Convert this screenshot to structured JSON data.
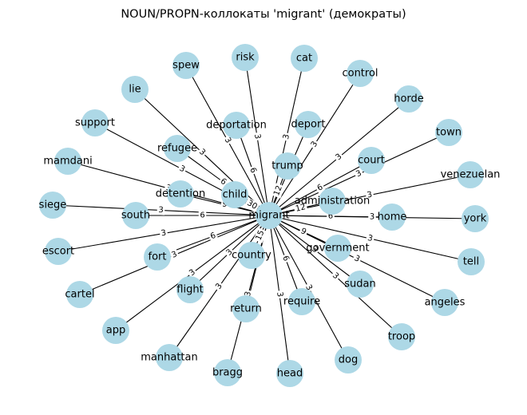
{
  "title": "NOUN/PROPN-коллокаты 'migrant' (демократы)",
  "colors": {
    "node_fill": "#add8e6",
    "edge": "#000000",
    "background": "#ffffff",
    "text": "#000000"
  },
  "center": "migrant",
  "nodes": [
    {
      "id": "spew",
      "weight": "3"
    },
    {
      "id": "risk",
      "weight": "3"
    },
    {
      "id": "cat",
      "weight": "3"
    },
    {
      "id": "control",
      "weight": "3"
    },
    {
      "id": "lie",
      "weight": "3"
    },
    {
      "id": "horde",
      "weight": "3"
    },
    {
      "id": "support",
      "weight": "3"
    },
    {
      "id": "deportation",
      "weight": "6"
    },
    {
      "id": "deport",
      "weight": "3"
    },
    {
      "id": "town",
      "weight": "3"
    },
    {
      "id": "refugee",
      "weight": "6"
    },
    {
      "id": "court",
      "weight": "6"
    },
    {
      "id": "mamdani",
      "weight": "3"
    },
    {
      "id": "trump",
      "weight": "12"
    },
    {
      "id": "venezuelan",
      "weight": "3"
    },
    {
      "id": "detention",
      "weight": "9"
    },
    {
      "id": "child",
      "weight": "30"
    },
    {
      "id": "administration",
      "weight": "12"
    },
    {
      "id": "siege",
      "weight": "3"
    },
    {
      "id": "south",
      "weight": "6"
    },
    {
      "id": "home",
      "weight": "6"
    },
    {
      "id": "york",
      "weight": "3"
    },
    {
      "id": "escort",
      "weight": "3"
    },
    {
      "id": "fort",
      "weight": "6"
    },
    {
      "id": "government",
      "weight": "9"
    },
    {
      "id": "country",
      "weight": "15"
    },
    {
      "id": "tell",
      "weight": "3"
    },
    {
      "id": "cartel",
      "weight": "3"
    },
    {
      "id": "flight",
      "weight": "3"
    },
    {
      "id": "sudan",
      "weight": "3"
    },
    {
      "id": "angeles",
      "weight": "3"
    },
    {
      "id": "require",
      "weight": "6"
    },
    {
      "id": "app",
      "weight": "3"
    },
    {
      "id": "return",
      "weight": "3"
    },
    {
      "id": "troop",
      "weight": "3"
    },
    {
      "id": "manhattan",
      "weight": "3"
    },
    {
      "id": "bragg",
      "weight": "3"
    },
    {
      "id": "head",
      "weight": "3"
    },
    {
      "id": "dog",
      "weight": "3"
    }
  ]
}
